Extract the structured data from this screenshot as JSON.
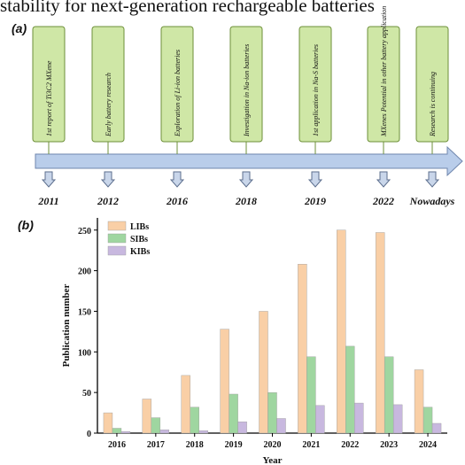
{
  "header_cut_text": "stability for next-generation rechargeable batteries",
  "panel_a": {
    "label": "(a)",
    "arrow_color": "#b9cdea",
    "box_fill": "#cfe7a6",
    "box_stroke": "#6e8f3a",
    "events": [
      {
        "text": "1st report of Ti3C2 MXene",
        "year": "2011"
      },
      {
        "text": "Early battery research",
        "year": "2012"
      },
      {
        "text": "Exploration of Li-ion batteries",
        "year": "2016"
      },
      {
        "text": "Investigation in Na-ion batteries",
        "year": "2018"
      },
      {
        "text": "1st application in Na-S batteries",
        "year": "2019"
      },
      {
        "text": "MXenes Potential in other battery application",
        "year": "2022"
      },
      {
        "text": "Research is continuing",
        "year": "Nowadays"
      }
    ]
  },
  "panel_b": {
    "label": "(b)"
  },
  "chart_data": {
    "type": "bar",
    "categories": [
      "2016",
      "2017",
      "2018",
      "2019",
      "2020",
      "2021",
      "2022",
      "2023",
      "2024"
    ],
    "series": [
      {
        "name": "LIBs",
        "color": "#f9cfa6",
        "values": [
          25,
          42,
          71,
          128,
          150,
          208,
          250,
          247,
          78
        ]
      },
      {
        "name": "SIBs",
        "color": "#9fd6a0",
        "values": [
          6,
          19,
          32,
          48,
          50,
          94,
          107,
          94,
          32
        ]
      },
      {
        "name": "KIBs",
        "color": "#c8b8df",
        "values": [
          2,
          4,
          3,
          14,
          18,
          34,
          37,
          35,
          12
        ]
      }
    ],
    "xlabel": "Year",
    "ylabel": "Publication number",
    "ylim": [
      0,
      265
    ],
    "yticks": [
      0,
      50,
      100,
      150,
      200,
      250
    ],
    "legend_position": "top-left",
    "grid": false
  }
}
